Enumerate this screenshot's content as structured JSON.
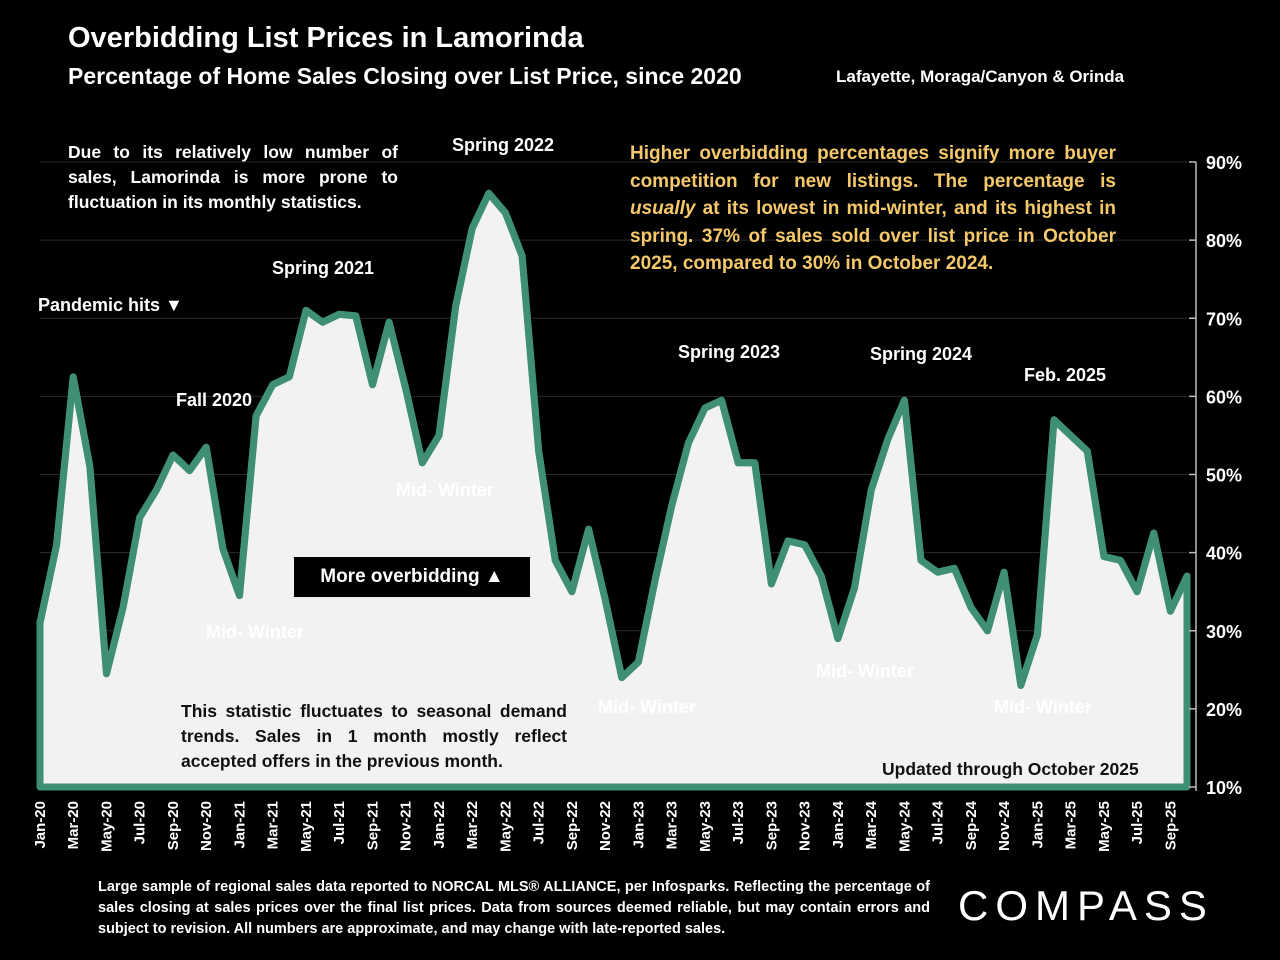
{
  "title": "Overbidding List Prices in Lamorinda",
  "subtitle": "Percentage of Home Sales Closing over List Price, since 2020",
  "region": "Lafayette, Moraga/Canyon & Orinda",
  "note_left": "Due to its relatively low number of sales, Lamorinda is more prone to fluctuation in its monthly statistics.",
  "note_right_pre": "Higher overbidding percentages signify more buyer competition for new listings. The percentage is ",
  "note_right_em": "usually",
  "note_right_post": " at its lowest in mid-winter, and its highest in spring. 37% of sales sold over list price in October 2025, compared to 30% in October 2024.",
  "note_bottom": "This statistic fluctuates to seasonal demand trends. Sales in 1 month mostly reflect accepted offers in the previous month.",
  "updated": "Updated through October 2025",
  "badge": "More overbidding ▲",
  "footer": "Large sample of regional sales data reported to NORCAL MLS® ALLIANCE, per Infosparks. Reflecting the percentage of sales closing at sales prices over the final list prices. Data from sources deemed reliable, but may contain errors and subject to revision. All numbers are approximate, and may change with late-reported sales.",
  "logo": "COMPASS",
  "annotations": [
    {
      "text": "Pandemic hits ▼",
      "tone": "light"
    },
    {
      "text": "Fall 2020",
      "tone": "light"
    },
    {
      "text": "Mid- Winter",
      "tone": "light"
    },
    {
      "text": "Spring 2021",
      "tone": "light"
    },
    {
      "text": "Mid- Winter",
      "tone": "light"
    },
    {
      "text": "Spring 2022",
      "tone": "light"
    },
    {
      "text": "Mid- Winter",
      "tone": "light"
    },
    {
      "text": "Spring 2023",
      "tone": "light"
    },
    {
      "text": "Mid- Winter",
      "tone": "light"
    },
    {
      "text": "Spring 2024",
      "tone": "light"
    },
    {
      "text": "Feb. 2025",
      "tone": "light"
    },
    {
      "text": "Mid- Winter",
      "tone": "light"
    }
  ],
  "colors": {
    "line": "#3f8f72",
    "fill": "#f2f2f2",
    "background": "#000000",
    "accent": "#f5c86a"
  },
  "chart_data": {
    "type": "area",
    "title": "Percentage of Home Sales Closing over List Price, since 2020",
    "ylim": [
      10,
      90
    ],
    "yticks": [
      "10%",
      "20%",
      "30%",
      "40%",
      "50%",
      "60%",
      "70%",
      "80%",
      "90%"
    ],
    "y_axis_position": "right",
    "x_tick_labels": [
      "Jan-20",
      "Mar-20",
      "May-20",
      "Jul-20",
      "Sep-20",
      "Nov-20",
      "Jan-21",
      "Mar-21",
      "May-21",
      "Jul-21",
      "Sep-21",
      "Nov-21",
      "Jan-22",
      "Mar-22",
      "May-22",
      "Jul-22",
      "Sep-22",
      "Nov-22",
      "Jan-23",
      "Mar-23",
      "May-23",
      "Jul-23",
      "Sep-23",
      "Nov-23",
      "Jan-24",
      "Mar-24",
      "May-24",
      "Jul-24",
      "Sep-24",
      "Nov-24",
      "Jan-25",
      "Mar-25",
      "May-25",
      "Jul-25",
      "Sep-25"
    ],
    "months": [
      "Jan-20",
      "Feb-20",
      "Mar-20",
      "Apr-20",
      "May-20",
      "Jun-20",
      "Jul-20",
      "Aug-20",
      "Sep-20",
      "Oct-20",
      "Nov-20",
      "Dec-20",
      "Jan-21",
      "Feb-21",
      "Mar-21",
      "Apr-21",
      "May-21",
      "Jun-21",
      "Jul-21",
      "Aug-21",
      "Sep-21",
      "Oct-21",
      "Nov-21",
      "Dec-21",
      "Jan-22",
      "Feb-22",
      "Mar-22",
      "Apr-22",
      "May-22",
      "Jun-22",
      "Jul-22",
      "Aug-22",
      "Sep-22",
      "Oct-22",
      "Nov-22",
      "Dec-22",
      "Jan-23",
      "Feb-23",
      "Mar-23",
      "Apr-23",
      "May-23",
      "Jun-23",
      "Jul-23",
      "Aug-23",
      "Sep-23",
      "Oct-23",
      "Nov-23",
      "Dec-23",
      "Jan-24",
      "Feb-24",
      "Mar-24",
      "Apr-24",
      "May-24",
      "Jun-24",
      "Jul-24",
      "Aug-24",
      "Sep-24",
      "Oct-24",
      "Nov-24",
      "Dec-24",
      "Jan-25",
      "Feb-25",
      "Mar-25",
      "Apr-25",
      "May-25",
      "Jun-25",
      "Jul-25",
      "Aug-25",
      "Sep-25",
      "Oct-25"
    ],
    "values": [
      31,
      41,
      62.5,
      51,
      24.5,
      33,
      44.5,
      48,
      52.5,
      50.5,
      53.5,
      40.5,
      34.5,
      57.5,
      61.5,
      62.5,
      71,
      69.5,
      70.5,
      70.3,
      61.5,
      69.5,
      61,
      51.5,
      55,
      71.5,
      81.5,
      86,
      83.5,
      78,
      53,
      39,
      35,
      43,
      34,
      24,
      26,
      36.5,
      46,
      54,
      58.5,
      59.5,
      51.5,
      51.5,
      36,
      41.5,
      41,
      37,
      29,
      35.5,
      48,
      54.5,
      59.5,
      39,
      37.5,
      38,
      33,
      30,
      37.5,
      23,
      29.5,
      57,
      55,
      53,
      39.5,
      39,
      35,
      42.5,
      32.5,
      37
    ]
  }
}
